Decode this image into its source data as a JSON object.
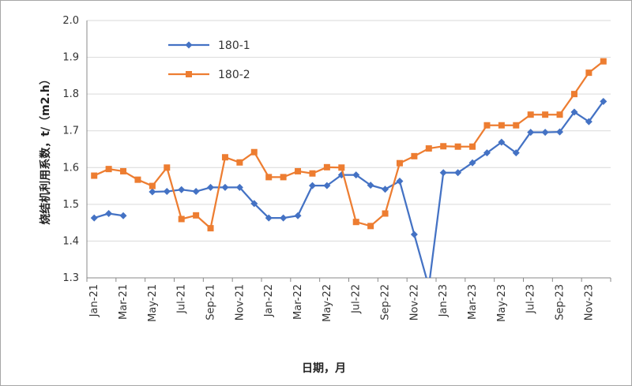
{
  "chart_data": {
    "type": "line",
    "title": "",
    "xlabel": "日期，月",
    "ylabel": "烧结机利用系数，t/（m2.h）",
    "ylim": [
      1.3,
      2.0
    ],
    "yticks": [
      "1.3",
      "1.4",
      "1.5",
      "1.6",
      "1.7",
      "1.8",
      "1.9",
      "2.0"
    ],
    "grid": "y-major",
    "legend_position": "top-left",
    "categories": [
      "Jan-21",
      "Feb-21",
      "Mar-21",
      "Apr-21",
      "May-21",
      "Jun-21",
      "Jul-21",
      "Aug-21",
      "Sep-21",
      "Oct-21",
      "Nov-21",
      "Dec-21",
      "Jan-22",
      "Feb-22",
      "Mar-22",
      "Apr-22",
      "May-22",
      "Jun-22",
      "Jul-22",
      "Aug-22",
      "Sep-22",
      "Oct-22",
      "Nov-22",
      "Dec-22",
      "Jan-23",
      "Feb-23",
      "Mar-23",
      "Apr-23",
      "May-23",
      "Jun-23",
      "Jul-23",
      "Aug-23",
      "Sep-23",
      "Oct-23",
      "Nov-23",
      "Dec-23"
    ],
    "shown_tick_labels": [
      "Jan-21",
      "Mar-21",
      "May-21",
      "Jul-21",
      "Sep-21",
      "Nov-21",
      "Jan-22",
      "Mar-22",
      "May-22",
      "Jul-22",
      "Sep-22",
      "Nov-22",
      "Jan-23",
      "Mar-23",
      "May-23",
      "Jul-23",
      "Sep-23",
      "Nov-23"
    ],
    "series": [
      {
        "name": "180-1",
        "color": "#4472c4",
        "marker": "diamond",
        "values": [
          1.463,
          1.475,
          1.469,
          null,
          1.534,
          1.535,
          1.54,
          1.535,
          1.546,
          1.546,
          1.546,
          1.502,
          1.463,
          1.463,
          1.469,
          1.551,
          1.551,
          1.58,
          1.58,
          1.552,
          1.541,
          1.563,
          1.418,
          1.276,
          1.586,
          1.586,
          1.613,
          1.64,
          1.669,
          1.64,
          1.696,
          1.696,
          1.697,
          1.751,
          1.725,
          1.78
        ]
      },
      {
        "name": "180-2",
        "color": "#ed7d31",
        "marker": "square",
        "values": [
          1.578,
          1.596,
          1.59,
          1.567,
          1.55,
          1.6,
          1.46,
          1.47,
          1.435,
          1.628,
          1.614,
          1.642,
          1.574,
          1.574,
          1.59,
          1.584,
          1.601,
          1.6,
          1.452,
          1.441,
          1.475,
          1.612,
          1.631,
          1.652,
          1.658,
          1.657,
          1.657,
          1.715,
          1.715,
          1.715,
          1.744,
          1.744,
          1.744,
          1.8,
          1.858,
          1.889
        ]
      }
    ]
  }
}
